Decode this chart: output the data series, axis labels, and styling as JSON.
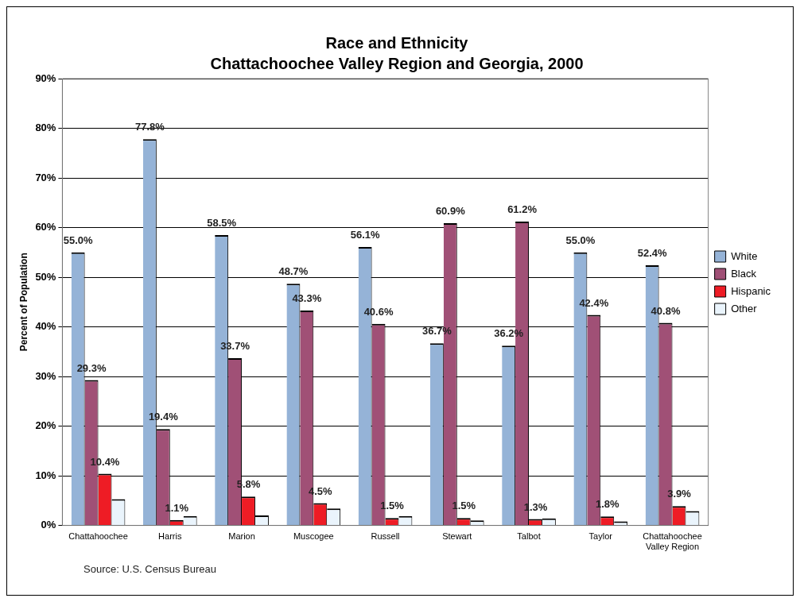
{
  "chart_data": {
    "type": "bar",
    "title": "Race and Ethnicity",
    "subtitle": "Chattachoochee Valley Region and Georgia, 2000",
    "ylabel": "Percent of Population",
    "categories": [
      "Chattahoochee",
      "Harris",
      "Marion",
      "Muscogee",
      "Russell",
      "Stewart",
      "Talbot",
      "Taylor",
      "Chattahoochee Valley Region"
    ],
    "series": [
      {
        "name": "White",
        "color": "#95b3d7",
        "values": [
          55.0,
          77.8,
          58.5,
          48.7,
          56.1,
          36.7,
          36.2,
          55.0,
          52.4
        ],
        "value_labels": [
          "55.0%",
          "77.8%",
          "58.5%",
          "48.7%",
          "56.1%",
          "36.7%",
          "36.2%",
          "55.0%",
          "52.4%"
        ]
      },
      {
        "name": "Black",
        "color": "#a05076",
        "values": [
          29.3,
          19.4,
          33.7,
          43.3,
          40.6,
          60.9,
          61.2,
          42.4,
          40.8
        ],
        "value_labels": [
          "29.3%",
          "19.4%",
          "33.7%",
          "43.3%",
          "40.6%",
          "60.9%",
          "61.2%",
          "42.4%",
          "40.8%"
        ]
      },
      {
        "name": "Hispanic",
        "color": "#ee1c25",
        "values": [
          10.4,
          1.1,
          5.8,
          4.5,
          1.5,
          1.5,
          1.3,
          1.8,
          3.9
        ],
        "value_labels": [
          "10.4%",
          "1.1%",
          "5.8%",
          "4.5%",
          "1.5%",
          "1.5%",
          "1.3%",
          "1.8%",
          "3.9%"
        ]
      },
      {
        "name": "Other",
        "color": "#eaf4fc",
        "values": [
          5.3,
          1.9,
          2.0,
          3.4,
          1.9,
          1.0,
          1.4,
          0.8,
          2.9
        ]
      }
    ],
    "ylim": [
      0,
      90
    ],
    "yticks": [
      {
        "value": 0,
        "label": "0%"
      },
      {
        "value": 10,
        "label": "10%"
      },
      {
        "value": 20,
        "label": "20%"
      },
      {
        "value": 30,
        "label": "30%"
      },
      {
        "value": 40,
        "label": "40%"
      },
      {
        "value": 50,
        "label": "50%"
      },
      {
        "value": 60,
        "label": "60%"
      },
      {
        "value": 70,
        "label": "70%"
      },
      {
        "value": 80,
        "label": "80%"
      },
      {
        "value": 90,
        "label": "90%"
      }
    ],
    "grid": "y",
    "legend": "right",
    "annotations": [
      "Source: U.S. Census Bureau"
    ]
  }
}
